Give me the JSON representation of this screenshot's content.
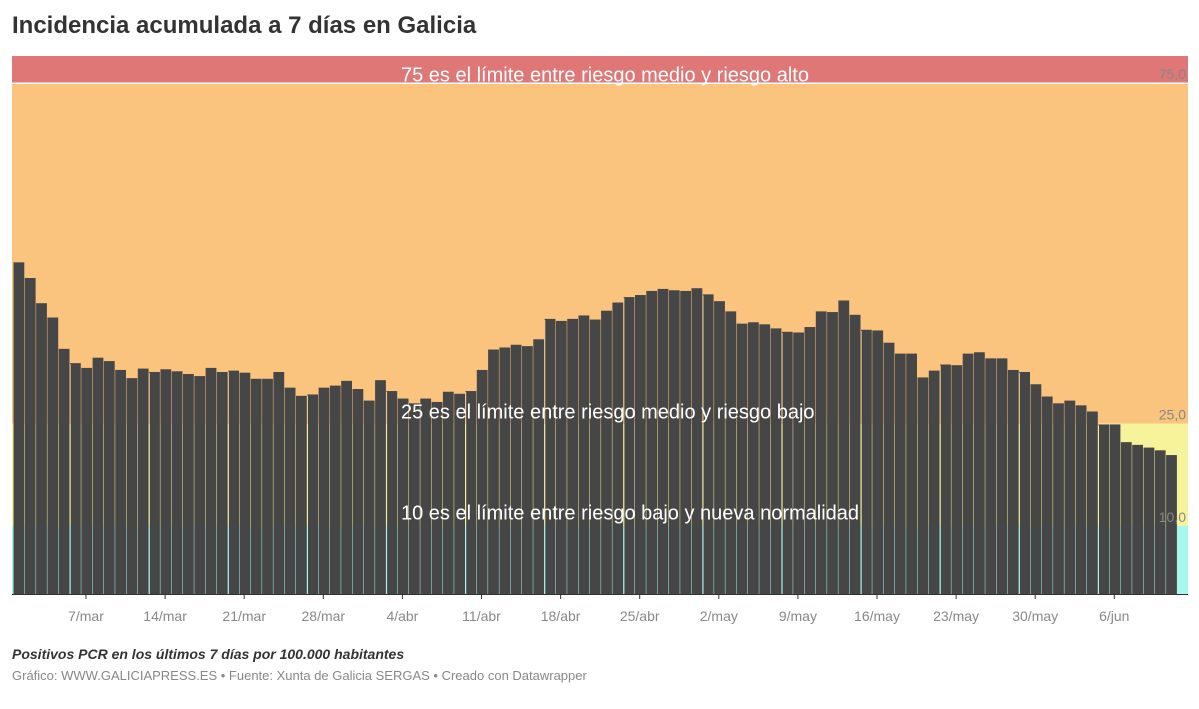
{
  "title": "Incidencia acumulada a 7 días en Galicia",
  "subtitle": "Positivos PCR en los últimos 7 días por 100.000 habitantes",
  "source": "Gráfico: WWW.GALICIAPRESS.ES • Fuente: Xunta de Galicia SERGAS • Creado con Datawrapper",
  "colors": {
    "bars": "#464646",
    "band_alto": "#df7777",
    "band_medio": "#fac47f",
    "band_bajo": "#f7f39b",
    "band_normalidad": "#a7f7ee",
    "axis_text": "#888888"
  },
  "chart_data": {
    "type": "bar",
    "title": "Incidencia acumulada a 7 días en Galicia",
    "ylim": [
      0,
      79
    ],
    "y_tick_labels": [
      "75,0",
      "25,0",
      "10,0"
    ],
    "x_tick_labels": [
      "7/mar",
      "14/mar",
      "21/mar",
      "28/mar",
      "4/abr",
      "11/abr",
      "18/abr",
      "25/abr",
      "2/may",
      "9/may",
      "16/may",
      "23/may",
      "30/may",
      "6/jun"
    ],
    "bands": [
      {
        "from": 75,
        "to": 79,
        "label": "75 es el límite entre riesgo medio y riesgo alto"
      },
      {
        "from": 25,
        "to": 75,
        "label": "25 es el límite entre riesgo medio y riesgo bajo"
      },
      {
        "from": 10,
        "to": 25,
        "label": "10 es el límite entre riesgo bajo y nueva normalidad"
      },
      {
        "from": 0,
        "to": 10,
        "label": ""
      }
    ],
    "values": [
      48.7,
      46.4,
      42.7,
      40.6,
      36.0,
      33.9,
      33.2,
      34.7,
      34.2,
      32.9,
      31.7,
      33.1,
      32.6,
      33.0,
      32.7,
      32.3,
      32.0,
      33.2,
      32.6,
      32.8,
      32.5,
      31.6,
      31.6,
      32.6,
      30.3,
      29.1,
      29.3,
      30.3,
      30.6,
      31.3,
      30.1,
      28.4,
      31.4,
      29.8,
      28.7,
      28.0,
      28.7,
      28.2,
      29.7,
      29.4,
      29.8,
      32.9,
      35.9,
      36.2,
      36.6,
      36.4,
      37.4,
      40.4,
      40.1,
      40.4,
      40.9,
      40.3,
      41.6,
      42.8,
      43.6,
      43.9,
      44.5,
      44.8,
      44.6,
      44.5,
      44.9,
      44.0,
      43.0,
      41.5,
      39.7,
      39.9,
      39.6,
      39.0,
      38.5,
      38.4,
      39.2,
      41.5,
      41.4,
      43.1,
      41.0,
      38.8,
      38.7,
      36.9,
      35.3,
      35.3,
      31.8,
      32.8,
      33.7,
      33.6,
      35.3,
      35.5,
      34.6,
      34.6,
      32.9,
      32.6,
      30.8,
      29.0,
      28.0,
      28.4,
      27.7,
      26.8,
      24.9,
      24.9,
      22.3,
      21.9,
      21.5,
      21.1,
      20.4
    ]
  }
}
